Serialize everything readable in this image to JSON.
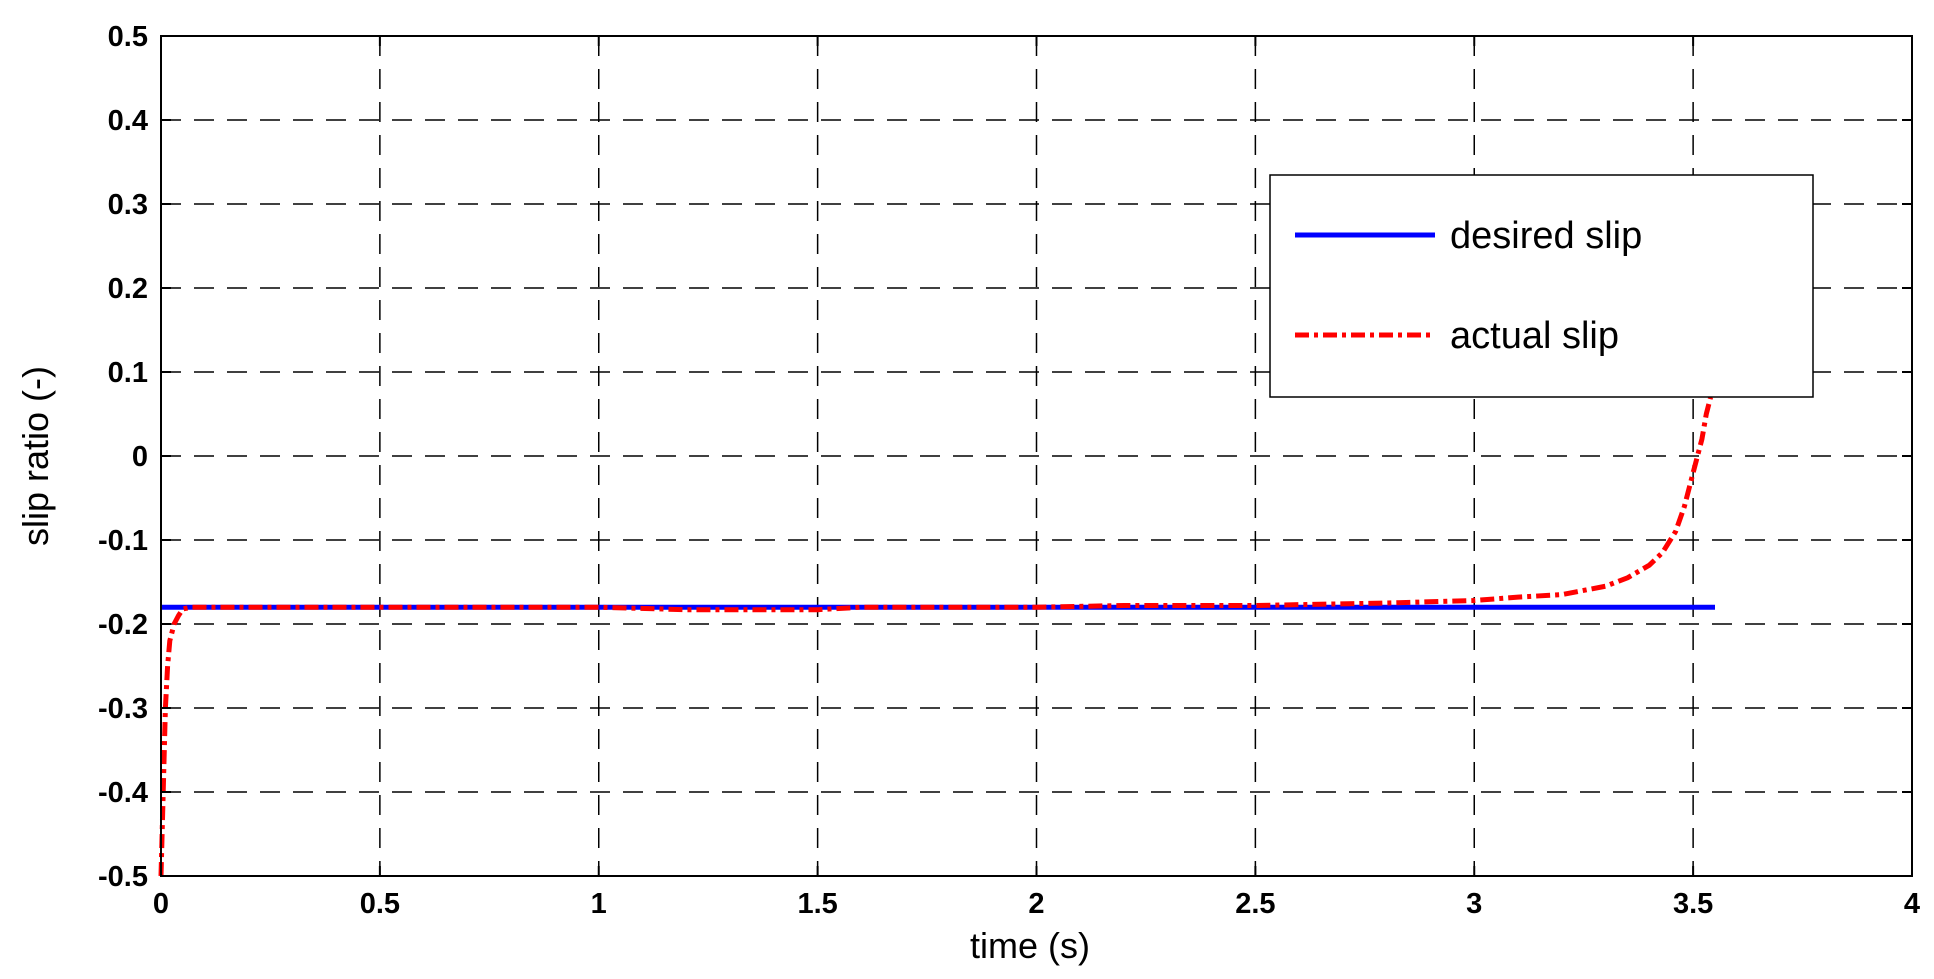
{
  "chart_data": {
    "type": "line",
    "title": "",
    "xlabel": "time (s)",
    "ylabel": "slip ratio (-)",
    "xlim": [
      0,
      4
    ],
    "ylim": [
      -0.5,
      0.5
    ],
    "xticks": [
      0,
      0.5,
      1,
      1.5,
      2,
      2.5,
      3,
      3.5,
      4
    ],
    "xtick_labels": [
      "0",
      "0.5",
      "1",
      "1.5",
      "2",
      "2.5",
      "3",
      "3.5",
      "4"
    ],
    "yticks": [
      0.5,
      0.4,
      0.3,
      0.2,
      0.1,
      0,
      -0.1,
      -0.2,
      -0.3,
      -0.4,
      -0.5
    ],
    "ytick_labels": [
      "0.5",
      "0.4",
      "0.3",
      "0.2",
      "0.1",
      "0",
      "-0.1",
      "-0.2",
      "-0.3",
      "-0.4",
      "-0.5"
    ],
    "grid": true,
    "grid_style": "dashed",
    "legend_position": "top-right",
    "series": [
      {
        "name": "desired slip",
        "color": "#0000ff",
        "line_style": "solid",
        "x": [
          0,
          3.55
        ],
        "y": [
          -0.18,
          -0.18
        ]
      },
      {
        "name": "actual slip",
        "color": "#ff0000",
        "line_style": "dash-dot",
        "x": [
          0,
          0.005,
          0.01,
          0.015,
          0.02,
          0.03,
          0.04,
          0.05,
          0.07,
          0.1,
          0.5,
          1.0,
          1.2,
          1.5,
          1.6,
          2.0,
          2.2,
          2.5,
          2.8,
          3.0,
          3.1,
          3.2,
          3.3,
          3.35,
          3.4,
          3.43,
          3.46,
          3.48,
          3.5,
          3.51,
          3.52,
          3.53,
          3.54
        ],
        "y": [
          -0.5,
          -0.4,
          -0.3,
          -0.25,
          -0.22,
          -0.2,
          -0.19,
          -0.182,
          -0.18,
          -0.18,
          -0.18,
          -0.18,
          -0.183,
          -0.183,
          -0.18,
          -0.18,
          -0.178,
          -0.178,
          -0.175,
          -0.172,
          -0.168,
          -0.165,
          -0.155,
          -0.145,
          -0.13,
          -0.115,
          -0.09,
          -0.06,
          -0.02,
          0.0,
          0.02,
          0.05,
          0.07
        ]
      }
    ]
  }
}
